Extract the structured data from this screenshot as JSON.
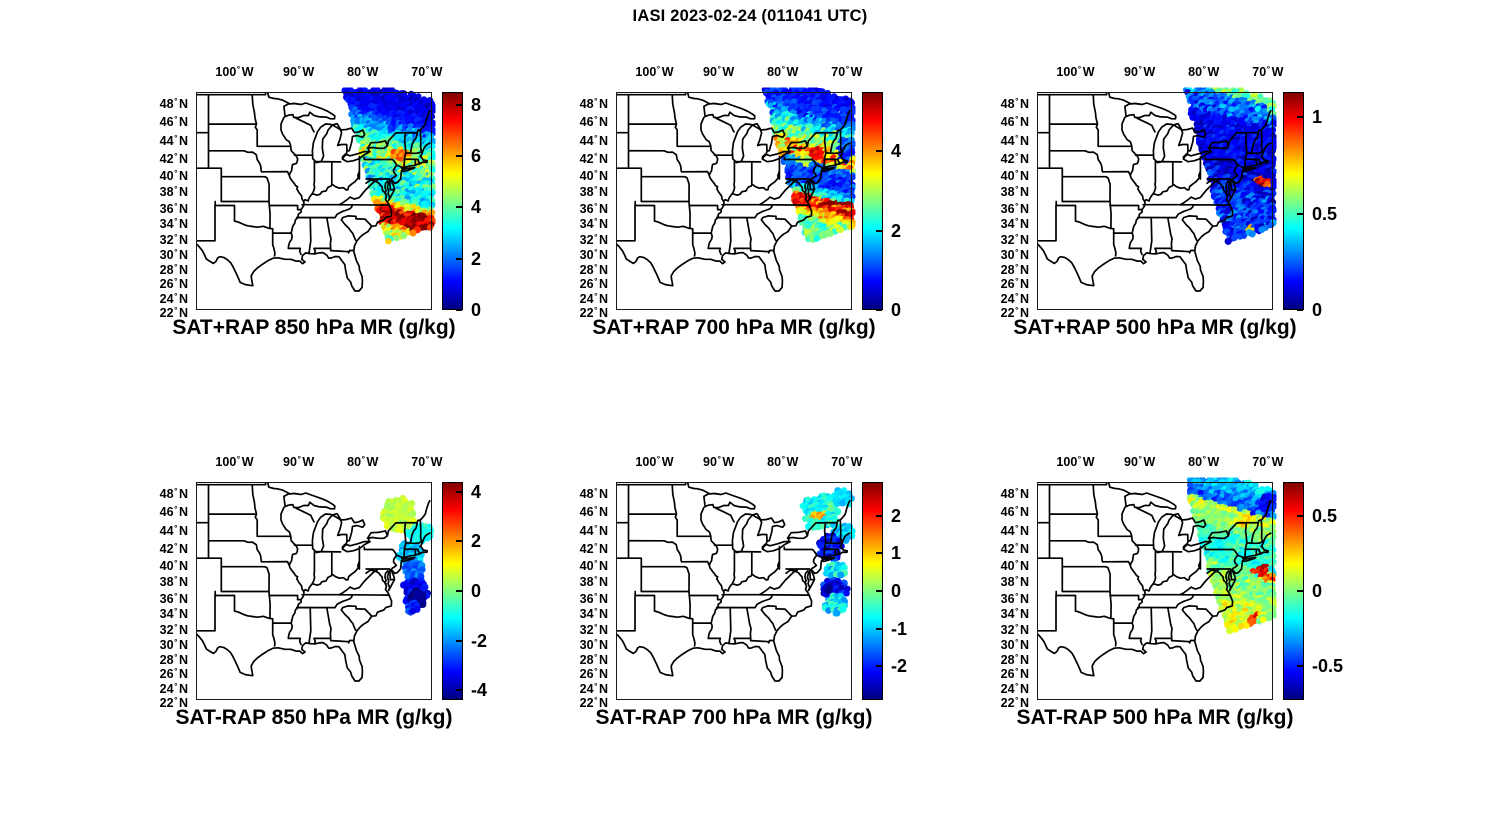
{
  "figure": {
    "title": "IASI 2023-02-24 (011041 UTC)",
    "background": "#ffffff",
    "text_color": "#000000"
  },
  "axes": {
    "lon_ticks": [
      {
        "deg": "100",
        "hem": "W"
      },
      {
        "deg": "90",
        "hem": "W"
      },
      {
        "deg": "80",
        "hem": "W"
      },
      {
        "deg": "70",
        "hem": "W"
      }
    ],
    "lat_ticks": [
      {
        "deg": "48",
        "hem": "N"
      },
      {
        "deg": "46",
        "hem": "N"
      },
      {
        "deg": "44",
        "hem": "N"
      },
      {
        "deg": "42",
        "hem": "N"
      },
      {
        "deg": "40",
        "hem": "N"
      },
      {
        "deg": "38",
        "hem": "N"
      },
      {
        "deg": "36",
        "hem": "N"
      },
      {
        "deg": "34",
        "hem": "N"
      },
      {
        "deg": "32",
        "hem": "N"
      },
      {
        "deg": "30",
        "hem": "N"
      },
      {
        "deg": "28",
        "hem": "N"
      },
      {
        "deg": "26",
        "hem": "N"
      },
      {
        "deg": "24",
        "hem": "N"
      },
      {
        "deg": "22",
        "hem": "N"
      }
    ]
  },
  "chart_data": {
    "type": "scatter",
    "title": "IASI 2023-02-24 (011041 UTC)",
    "satellite": "IASI",
    "date": "2023-02-24",
    "time_utc": "011041",
    "units": "g/kg",
    "colormap": "jet",
    "projection": "mercator",
    "grid": false,
    "map_extent": {
      "lon_min": -106.0,
      "lon_max": -69.2,
      "lat_min": 21.7,
      "lat_max": 49.3
    },
    "lon_tick_values": [
      -100,
      -90,
      -80,
      -70
    ],
    "lat_tick_values": [
      48,
      46,
      44,
      42,
      40,
      38,
      36,
      34,
      32,
      30,
      28,
      26,
      24,
      22
    ],
    "swath_outline_lonlat": [
      [
        -82.9,
        49.6
      ],
      [
        -58.0,
        49.6
      ],
      [
        -66.0,
        34.7
      ],
      [
        -76.15,
        31.85
      ]
    ],
    "band_tilt_deg_per_lon": 0.2,
    "panels": [
      {
        "id": "sat_plus_rap_850",
        "row": 0,
        "col": 0,
        "title": "SAT+RAP 850 hPa MR (g/kg)",
        "operation": "SAT+RAP",
        "pressure_hpa": 850,
        "colorbar": {
          "vmin": 0,
          "vmax": 8.5,
          "ticks": [
            0,
            2,
            4,
            6,
            8
          ],
          "tick_labels": [
            "0",
            "2",
            "4",
            "6",
            "8"
          ]
        },
        "swath": {
          "mode": "full",
          "bands": [
            [
              46.3,
              49.6,
              0.75,
              1.05,
              0.35
            ],
            [
              44.3,
              46.3,
              1.5,
              3.0,
              0.8
            ],
            [
              42.8,
              44.3,
              3.3,
              4.2,
              0.9
            ],
            [
              41.3,
              42.8,
              4.3,
              4.5,
              1.1
            ],
            [
              39.2,
              41.3,
              3.9,
              3.4,
              1.1
            ],
            [
              37.2,
              39.2,
              3.0,
              3.4,
              0.9
            ],
            [
              35.9,
              37.2,
              4.2,
              6.4,
              1.2
            ],
            [
              34.0,
              35.9,
              7.7,
              8.0,
              0.9
            ],
            [
              30.5,
              34.0,
              6.0,
              3.0,
              1.2
            ]
          ],
          "blobs": [
            [
              -73.9,
              42.3,
              1.7,
              0.8,
              6.3,
              0.7
            ],
            [
              -71.0,
              34.9,
              1.2,
              0.7,
              8.3,
              0.35
            ]
          ]
        }
      },
      {
        "id": "sat_plus_rap_700",
        "row": 0,
        "col": 1,
        "title": "SAT+RAP 700 hPa MR (g/kg)",
        "operation": "SAT+RAP",
        "pressure_hpa": 700,
        "colorbar": {
          "vmin": 0,
          "vmax": 5.5,
          "ticks": [
            0,
            2,
            4
          ],
          "tick_labels": [
            "0",
            "2",
            "4"
          ]
        },
        "swath": {
          "mode": "full",
          "bands": [
            [
              46.8,
              49.6,
              0.7,
              0.95,
              0.3
            ],
            [
              44.9,
              46.8,
              1.3,
              2.3,
              0.7
            ],
            [
              43.3,
              44.9,
              2.6,
              3.3,
              0.8
            ],
            [
              41.6,
              43.3,
              3.6,
              3.8,
              0.9
            ],
            [
              38.8,
              41.6,
              1.3,
              0.8,
              0.4
            ],
            [
              37.6,
              38.8,
              1.3,
              2.3,
              0.6
            ],
            [
              36.0,
              37.6,
              4.4,
              4.8,
              0.7
            ],
            [
              34.9,
              36.0,
              3.9,
              3.5,
              0.6
            ],
            [
              30.5,
              34.9,
              2.9,
              2.0,
              0.6
            ]
          ],
          "blobs": [
            [
              -74.6,
              42.5,
              1.5,
              0.8,
              4.9,
              0.4
            ],
            [
              -70.1,
              42.9,
              1.3,
              1.4,
              1.1,
              0.4
            ],
            [
              -76.4,
              41.7,
              1.1,
              0.6,
              3.2,
              0.5
            ],
            [
              -71.6,
              36.6,
              2.4,
              0.35,
              5.4,
              0.15
            ]
          ]
        }
      },
      {
        "id": "sat_plus_rap_500",
        "row": 0,
        "col": 2,
        "title": "SAT+RAP 500 hPa MR (g/kg)",
        "operation": "SAT+RAP",
        "pressure_hpa": 500,
        "colorbar": {
          "vmin": 0,
          "vmax": 1.13,
          "ticks": [
            0,
            0.5,
            1
          ],
          "tick_labels": [
            "0",
            "0.5",
            "1"
          ]
        },
        "swath": {
          "mode": "full",
          "bands": [
            [
              48.7,
              49.6,
              0.55,
              0.55,
              0.1
            ],
            [
              46.4,
              48.7,
              0.3,
              0.2,
              0.12
            ],
            [
              40.4,
              46.4,
              0.14,
              0.1,
              0.07
            ],
            [
              38.4,
              40.4,
              0.12,
              0.16,
              0.1
            ],
            [
              30.5,
              38.4,
              0.18,
              0.22,
              0.12
            ]
          ],
          "blobs": [
            [
              -68.9,
              47.7,
              1.1,
              0.75,
              0.55,
              0.12
            ],
            [
              -70.7,
              39.3,
              1.3,
              0.65,
              1.0,
              0.15
            ],
            [
              -69.7,
              38.8,
              0.6,
              0.45,
              0.78,
              0.15
            ],
            [
              -72.6,
              33.4,
              0.55,
              0.35,
              0.8,
              0.12
            ]
          ]
        }
      },
      {
        "id": "sat_minus_rap_850",
        "row": 1,
        "col": 0,
        "title": "SAT-RAP 850 hPa MR (g/kg)",
        "operation": "SAT-RAP",
        "pressure_hpa": 850,
        "colorbar": {
          "vmin": -4.4,
          "vmax": 4.4,
          "ticks": [
            4,
            2,
            0,
            -2,
            -4
          ],
          "tick_labels": [
            "4",
            "2",
            "0",
            "-2",
            "-4"
          ]
        },
        "swath": {
          "mode": "clusters",
          "clusters": [
            [
              -74.4,
              45.9,
              2.4,
              1.8,
              0.55,
              0.35
            ],
            [
              -71.0,
              43.9,
              1.9,
              0.9,
              -0.8,
              0.45
            ],
            [
              -72.6,
              41.5,
              1.9,
              1.3,
              -1.5,
              0.6
            ],
            [
              -72.0,
              39.6,
              1.6,
              1.0,
              -2.4,
              0.5
            ],
            [
              -71.7,
              36.9,
              2.0,
              1.7,
              -3.5,
              0.6
            ],
            [
              -71.4,
              36.2,
              1.2,
              1.0,
              -4.25,
              0.25
            ],
            [
              -72.3,
              35.0,
              0.95,
              0.7,
              -3.1,
              0.7
            ],
            [
              -74.6,
              37.4,
              0.25,
              0.2,
              -2.5,
              0.3
            ]
          ],
          "blobs": []
        }
      },
      {
        "id": "sat_minus_rap_700",
        "row": 1,
        "col": 1,
        "title": "SAT-RAP 700 hPa MR (g/kg)",
        "operation": "SAT-RAP",
        "pressure_hpa": 700,
        "colorbar": {
          "vmin": -2.9,
          "vmax": 2.9,
          "ticks": [
            2,
            1,
            0,
            -1,
            -2
          ],
          "tick_labels": [
            "2",
            "1",
            "0",
            "-1",
            "-2"
          ]
        },
        "swath": {
          "mode": "clusters",
          "clusters": [
            [
              -74.2,
              46.1,
              2.7,
              1.8,
              -0.7,
              0.45
            ],
            [
              -70.6,
              47.6,
              1.4,
              0.9,
              -0.85,
              0.35
            ],
            [
              -70.6,
              43.9,
              1.5,
              0.9,
              -0.9,
              0.45
            ],
            [
              -72.6,
              42.2,
              1.7,
              1.4,
              -2.1,
              0.5
            ],
            [
              -71.8,
              39.6,
              1.5,
              0.9,
              -0.75,
              0.55
            ],
            [
              -71.9,
              37.3,
              1.9,
              1.2,
              -2.2,
              0.55
            ],
            [
              -72.9,
              37.2,
              0.55,
              0.4,
              -2.8,
              0.15
            ],
            [
              -71.7,
              35.4,
              1.7,
              1.1,
              -0.8,
              0.6
            ]
          ],
          "blobs": [
            [
              -74.4,
              45.7,
              1.2,
              0.45,
              1.1,
              0.35
            ],
            [
              -72.3,
              46.5,
              0.9,
              0.6,
              -0.15,
              0.3
            ]
          ]
        }
      },
      {
        "id": "sat_minus_rap_500",
        "row": 1,
        "col": 2,
        "title": "SAT-RAP 500 hPa MR (g/kg)",
        "operation": "SAT-RAP",
        "pressure_hpa": 500,
        "colorbar": {
          "vmin": -0.73,
          "vmax": 0.73,
          "ticks": [
            0.5,
            0,
            -0.5
          ],
          "tick_labels": [
            "0.5",
            "0",
            "-0.5"
          ]
        },
        "swath": {
          "mode": "full",
          "bands": [
            [
              47.9,
              49.6,
              -0.24,
              -0.3,
              0.1
            ],
            [
              46.4,
              47.9,
              -0.34,
              -0.46,
              0.12
            ],
            [
              43.7,
              46.4,
              0.1,
              0.0,
              0.1
            ],
            [
              40.3,
              43.7,
              -0.1,
              -0.14,
              0.1
            ],
            [
              38.3,
              40.3,
              -0.04,
              0.02,
              0.12
            ],
            [
              35.7,
              38.3,
              0.0,
              0.05,
              0.1
            ],
            [
              30.5,
              35.7,
              0.1,
              0.16,
              0.12
            ]
          ],
          "blobs": [
            [
              -69.9,
              46.9,
              1.4,
              1.0,
              -0.55,
              0.08
            ],
            [
              -73.5,
              45.2,
              1.6,
              0.8,
              0.2,
              0.1
            ],
            [
              -70.9,
              39.4,
              1.4,
              0.65,
              0.58,
              0.12
            ],
            [
              -69.6,
              38.5,
              0.8,
              0.5,
              0.45,
              0.12
            ],
            [
              -72.4,
              33.3,
              0.9,
              0.5,
              0.45,
              0.12
            ],
            [
              -71.6,
              33.9,
              0.4,
              0.3,
              0.58,
              0.05
            ]
          ]
        }
      }
    ]
  }
}
